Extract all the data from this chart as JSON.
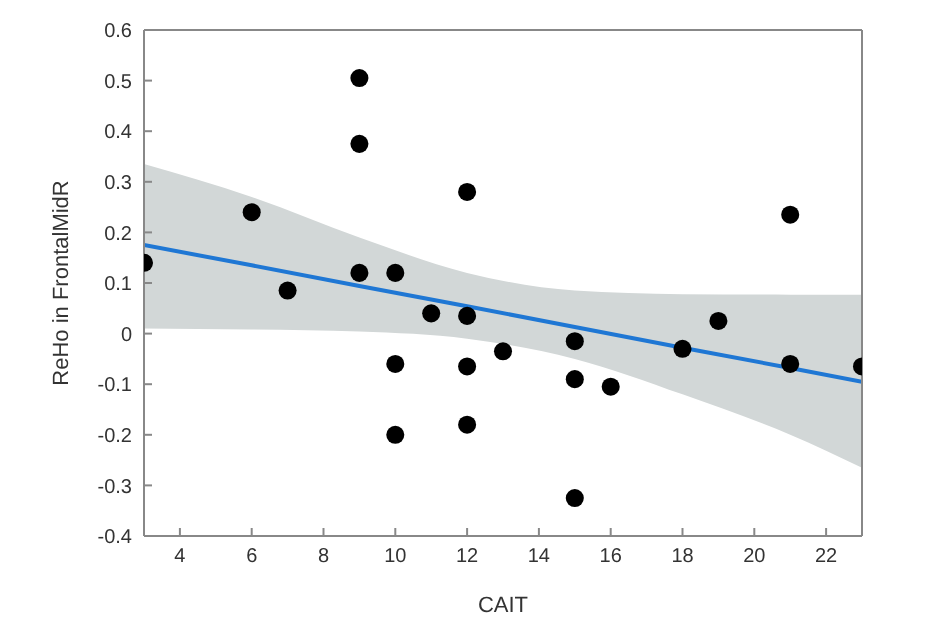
{
  "chart_data": {
    "type": "scatter",
    "xlabel": "CAIT",
    "ylabel": "ReHo in FrontalMidR",
    "xlim": [
      3,
      23
    ],
    "xticks": [
      4,
      6,
      8,
      10,
      12,
      14,
      16,
      18,
      20,
      22
    ],
    "ylim": [
      -0.4,
      0.6
    ],
    "yticks": [
      -0.4,
      -0.3,
      -0.2,
      -0.1,
      0,
      0.1,
      0.2,
      0.3,
      0.4,
      0.5,
      0.6
    ],
    "grid": false,
    "legend": false,
    "series": [
      {
        "marker": "circle",
        "color": "#000000",
        "x": [
          3,
          6,
          7,
          9,
          9,
          9,
          10,
          10,
          10,
          11,
          12,
          12,
          12,
          12,
          13,
          15,
          15,
          15,
          16,
          18,
          19,
          21,
          21,
          23
        ],
        "values": [
          0.14,
          0.24,
          0.085,
          0.505,
          0.375,
          0.12,
          0.12,
          -0.06,
          -0.2,
          0.04,
          0.28,
          0.035,
          -0.065,
          -0.18,
          -0.035,
          -0.015,
          -0.09,
          -0.325,
          -0.105,
          -0.03,
          0.025,
          0.235,
          -0.06,
          -0.065
        ]
      },
      {
        "type": "line",
        "marker": "none",
        "color": "#1f77d4",
        "line_style": "solid",
        "x": [
          3,
          6,
          9,
          12,
          15,
          18,
          21,
          23
        ],
        "values": [
          0.175,
          0.135,
          0.094,
          0.054,
          0.013,
          -0.028,
          -0.068,
          -0.095
        ],
        "lower": [
          0.01,
          0.008,
          0.004,
          -0.01,
          -0.05,
          -0.12,
          -0.2,
          -0.265
        ],
        "upper": [
          0.335,
          0.27,
          0.19,
          0.12,
          0.085,
          0.078,
          0.077,
          0.077
        ]
      }
    ]
  }
}
